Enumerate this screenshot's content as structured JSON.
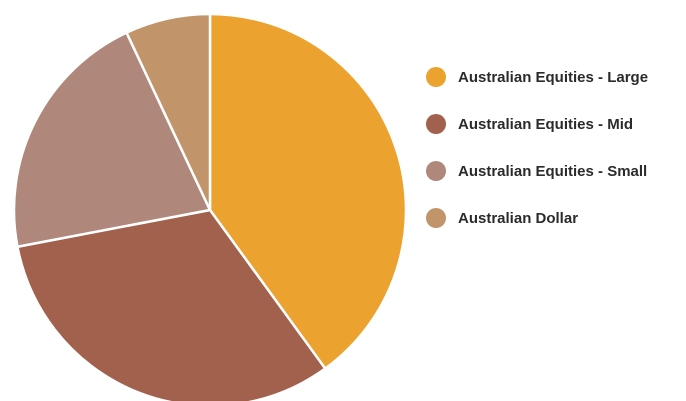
{
  "chart_data": {
    "type": "pie",
    "title": "",
    "slices": [
      {
        "label": "Australian Equities - Large",
        "value": 40,
        "color": "#EBA22E"
      },
      {
        "label": "Australian Equities - Mid",
        "value": 32,
        "color": "#A1614C"
      },
      {
        "label": "Australian Equities - Small",
        "value": 21,
        "color": "#B0877B"
      },
      {
        "label": "Australian Dollar",
        "value": 7,
        "color": "#C19569"
      }
    ],
    "legend_position": "right",
    "start_angle": "top",
    "direction": "clockwise"
  }
}
